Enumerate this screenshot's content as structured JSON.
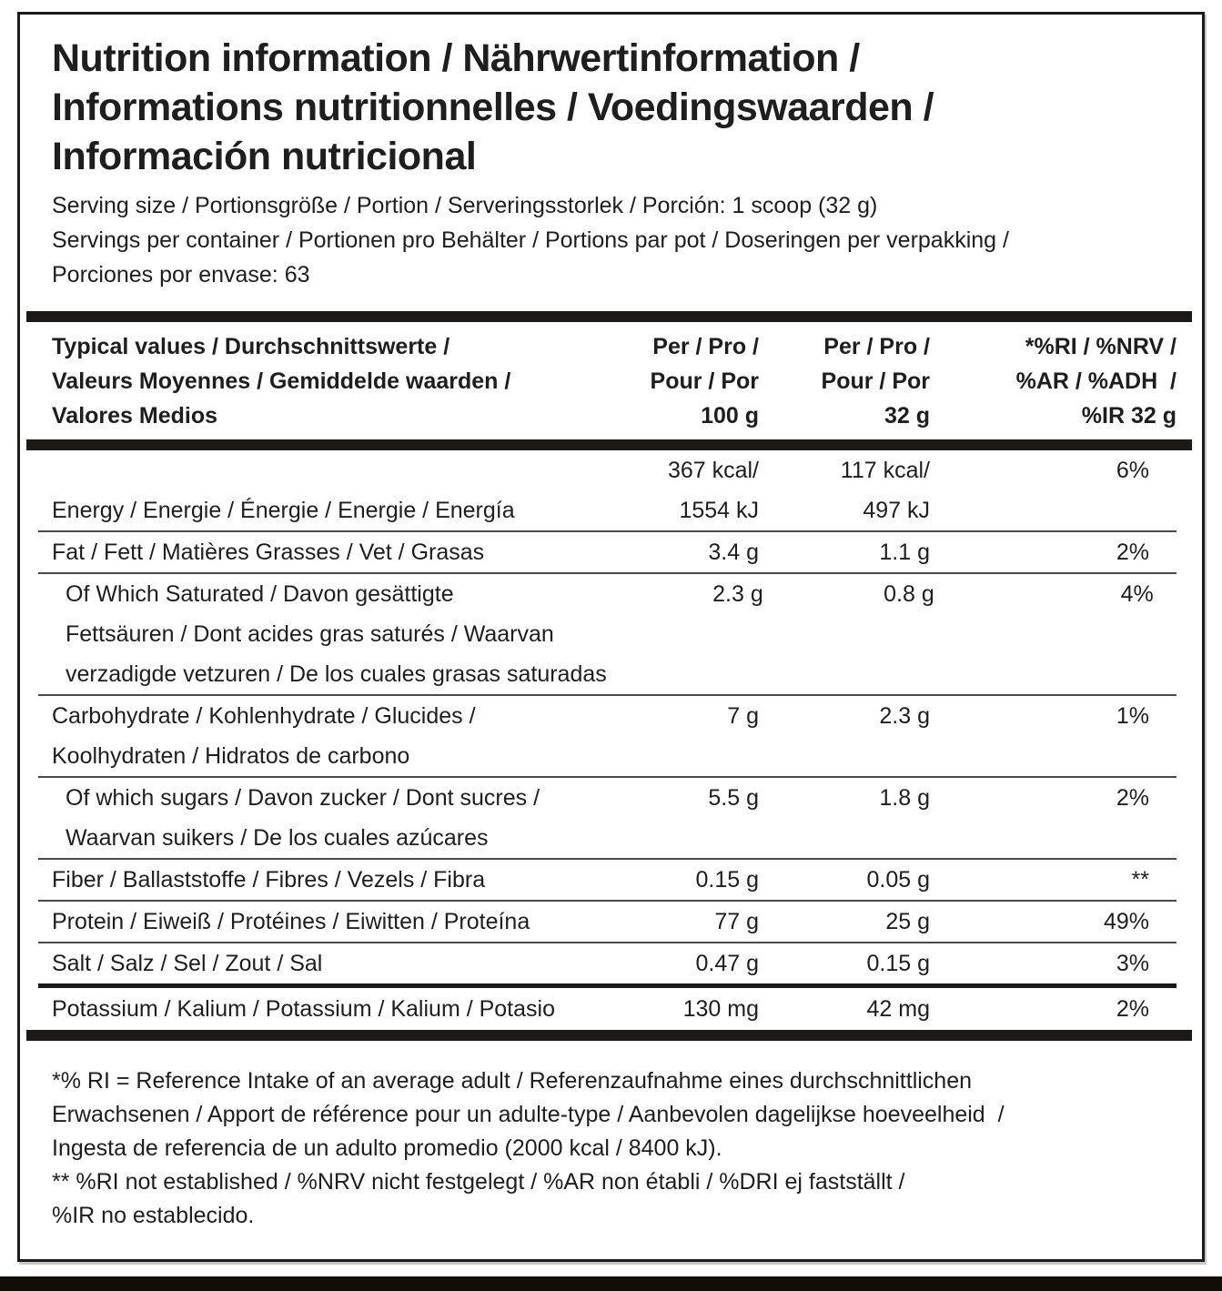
{
  "colors": {
    "text": "#1e1e1e",
    "bar": "#1c1916",
    "thin_line": "#4a4a4a",
    "card_border": "#1c1c1a",
    "bottom_bar": "#130d07",
    "background": "#ffffff"
  },
  "title_lines": [
    "Nutrition information / Nährwertinformation /",
    "Informations nutritionnelles / Voedingswaarden /",
    "Información nutricional"
  ],
  "serving_lines": [
    "Serving size / Portionsgröße / Portion / Serveringsstorlek / Porción: 1 scoop (32 g)",
    "Servings per container / Portionen pro Behälter / Portions par pot / Doseringen per verpakking /",
    "Porciones por envase: 63"
  ],
  "table": {
    "header": {
      "col1_lines": [
        "Typical values / Durchschnittswerte /",
        "Valeurs Moyennes / Gemiddelde waarden /",
        "Valores Medios"
      ],
      "col2_lines": [
        "Per / Pro /",
        "Pour / Por",
        "100 g"
      ],
      "col3_lines": [
        "Per / Pro /",
        "Pour / Por",
        "32 g"
      ],
      "col4_lines": [
        "*%RI / %NRV /",
        "%AR / %ADH  /",
        "%IR 32 g"
      ]
    },
    "rows": [
      {
        "name": "energy",
        "label_lines": [
          "Energy / Energie / Énergie / Energie / Energía"
        ],
        "per100_lines": [
          "367 kcal/",
          "1554 kJ"
        ],
        "per32_lines": [
          "117 kcal/",
          "497 kJ"
        ],
        "ri": "6%",
        "indent": false,
        "values_on_top": true,
        "border_top": "none"
      },
      {
        "name": "fat",
        "label_lines": [
          "Fat / Fett / Matières Grasses / Vet / Grasas"
        ],
        "per100_lines": [
          "3.4 g"
        ],
        "per32_lines": [
          "1.1 g"
        ],
        "ri": "2%",
        "indent": false,
        "values_on_top": false,
        "border_top": "thin"
      },
      {
        "name": "saturated-fat",
        "label_lines": [
          "Of Which Saturated / Davon gesättigte",
          "Fettsäuren / Dont acides gras saturés / Waarvan",
          "verzadigde vetzuren / De los cuales grasas saturadas"
        ],
        "per100_lines": [
          "2.3 g"
        ],
        "per32_lines": [
          "0.8 g"
        ],
        "ri": "4%",
        "indent": true,
        "values_on_top": false,
        "border_top": "thin"
      },
      {
        "name": "carbohydrate",
        "label_lines": [
          "Carbohydrate / Kohlenhydrate / Glucides /",
          "Koolhydraten / Hidratos de carbono"
        ],
        "per100_lines": [
          "7 g"
        ],
        "per32_lines": [
          "2.3 g"
        ],
        "ri": "1%",
        "indent": false,
        "values_on_top": false,
        "border_top": "thin"
      },
      {
        "name": "sugars",
        "label_lines": [
          "Of which sugars / Davon zucker / Dont sucres /",
          "Waarvan suikers / De los cuales azúcares"
        ],
        "per100_lines": [
          "5.5 g"
        ],
        "per32_lines": [
          "1.8 g"
        ],
        "ri": "2%",
        "indent": true,
        "values_on_top": false,
        "border_top": "thin"
      },
      {
        "name": "fiber",
        "label_lines": [
          "Fiber / Ballaststoffe / Fibres / Vezels / Fibra"
        ],
        "per100_lines": [
          "0.15 g"
        ],
        "per32_lines": [
          "0.05 g"
        ],
        "ri": "**",
        "indent": false,
        "values_on_top": false,
        "border_top": "thin"
      },
      {
        "name": "protein",
        "label_lines": [
          "Protein / Eiweiß / Protéines / Eiwitten / Proteína"
        ],
        "per100_lines": [
          "77 g"
        ],
        "per32_lines": [
          "25 g"
        ],
        "ri": "49%",
        "indent": false,
        "values_on_top": false,
        "border_top": "thin"
      },
      {
        "name": "salt",
        "label_lines": [
          "Salt / Salz / Sel / Zout / Sal"
        ],
        "per100_lines": [
          "0.47 g"
        ],
        "per32_lines": [
          "0.15 g"
        ],
        "ri": "3%",
        "indent": false,
        "values_on_top": false,
        "border_top": "thin"
      },
      {
        "name": "potassium",
        "label_lines": [
          "Potassium / Kalium / Potassium / Kalium / Potasio"
        ],
        "per100_lines": [
          "130 mg"
        ],
        "per32_lines": [
          "42 mg"
        ],
        "ri": "2%",
        "indent": false,
        "values_on_top": false,
        "border_top": "medium",
        "padded": true
      }
    ]
  },
  "footnotes_lines": [
    "*% RI = Reference Intake of an average adult / Referenzaufnahme eines durchschnittlichen",
    "Erwachsenen / Apport de référence pour un adulte-type / Aanbevolen dagelijkse hoeveelheid  /",
    "Ingesta de referencia de un adulto promedio (2000 kcal / 8400 kJ).",
    "** %RI not established / %NRV nicht festgelegt / %AR non établi / %DRI ej fastställt /",
    "%IR no establecido."
  ]
}
